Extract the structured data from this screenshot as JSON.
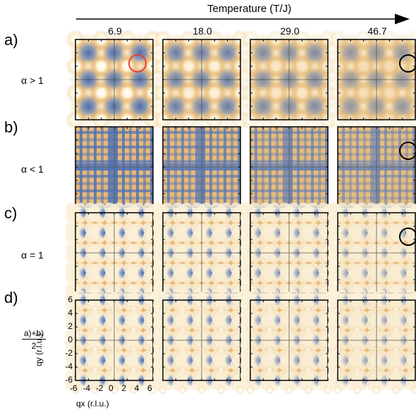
{
  "header": {
    "axis_title": "Temperature (T/J)",
    "temperatures": [
      "6.9",
      "18.0",
      "29.0",
      "46.7"
    ]
  },
  "rows": [
    {
      "letter": "a)",
      "condition": "α > 1",
      "pattern": "dots"
    },
    {
      "letter": "b)",
      "condition": "α < 1",
      "pattern": "stripes"
    },
    {
      "letter": "c)",
      "condition": "α = 1",
      "pattern": "loops"
    },
    {
      "letter": "d)",
      "condition_num": "a)+b)",
      "condition_den": "2",
      "pattern": "mixed"
    }
  ],
  "axes": {
    "xlabel": "qx (r.l.u.)",
    "ylabel": "qy (r.l.u.)",
    "xticks": [
      "-6",
      "-4",
      "-2",
      "0",
      "2",
      "4",
      "6"
    ],
    "yticks": [
      "6",
      "4",
      "2",
      "0",
      "-2",
      "-4",
      "-6"
    ]
  },
  "markers": {
    "red_circle_color": "#e8403a",
    "black_circle_color": "#000000"
  },
  "colors": {
    "background_warm": "#e7b976",
    "pale": "#fbf0d8",
    "bright": "#fffdf4",
    "blue": "#4e71b8"
  }
}
